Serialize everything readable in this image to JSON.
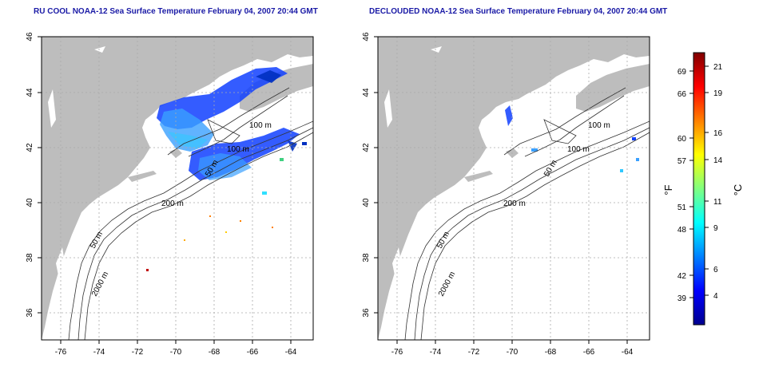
{
  "panels": [
    {
      "title": "RU COOL NOAA-12 Sea Surface Temperature February 04, 2007 20:44 GMT",
      "lon_ticks": [
        "-76",
        "-74",
        "-72",
        "-70",
        "-68",
        "-66",
        "-64"
      ],
      "lat_ticks": [
        "46",
        "44",
        "42",
        "40",
        "38",
        "36"
      ],
      "contour_labels": [
        "100 m",
        "100 m",
        "50 m",
        "200 m",
        "50 m",
        "2000 m"
      ],
      "clouds_masked": false
    },
    {
      "title": "DECLOUDED NOAA-12 Sea Surface Temperature February 04, 2007 20:44 GMT",
      "lon_ticks": [
        "-76",
        "-74",
        "-72",
        "-70",
        "-68",
        "-66",
        "-64"
      ],
      "lat_ticks": [
        "46",
        "44",
        "42",
        "40",
        "38",
        "36"
      ],
      "contour_labels": [
        "100 m",
        "100 m",
        "50 m",
        "200 m",
        "50 m",
        "2000 m"
      ],
      "clouds_masked": true
    }
  ],
  "colorbar": {
    "f_label": "°F",
    "c_label": "°C",
    "f_ticks": [
      "69",
      "66",
      "60",
      "57",
      "51",
      "48",
      "42",
      "39"
    ],
    "c_ticks": [
      "21",
      "19",
      "16",
      "14",
      "11",
      "9",
      "6",
      "4"
    ],
    "colors": [
      "#00008f",
      "#0000ff",
      "#0080ff",
      "#00ffff",
      "#80ff80",
      "#ffff00",
      "#ff8000",
      "#ff0000",
      "#800000"
    ]
  },
  "colors": {
    "land": "#bdbdbd",
    "ocean": "#ffffff",
    "title": "#1a1aa6",
    "grid": "#aaaaaa"
  }
}
